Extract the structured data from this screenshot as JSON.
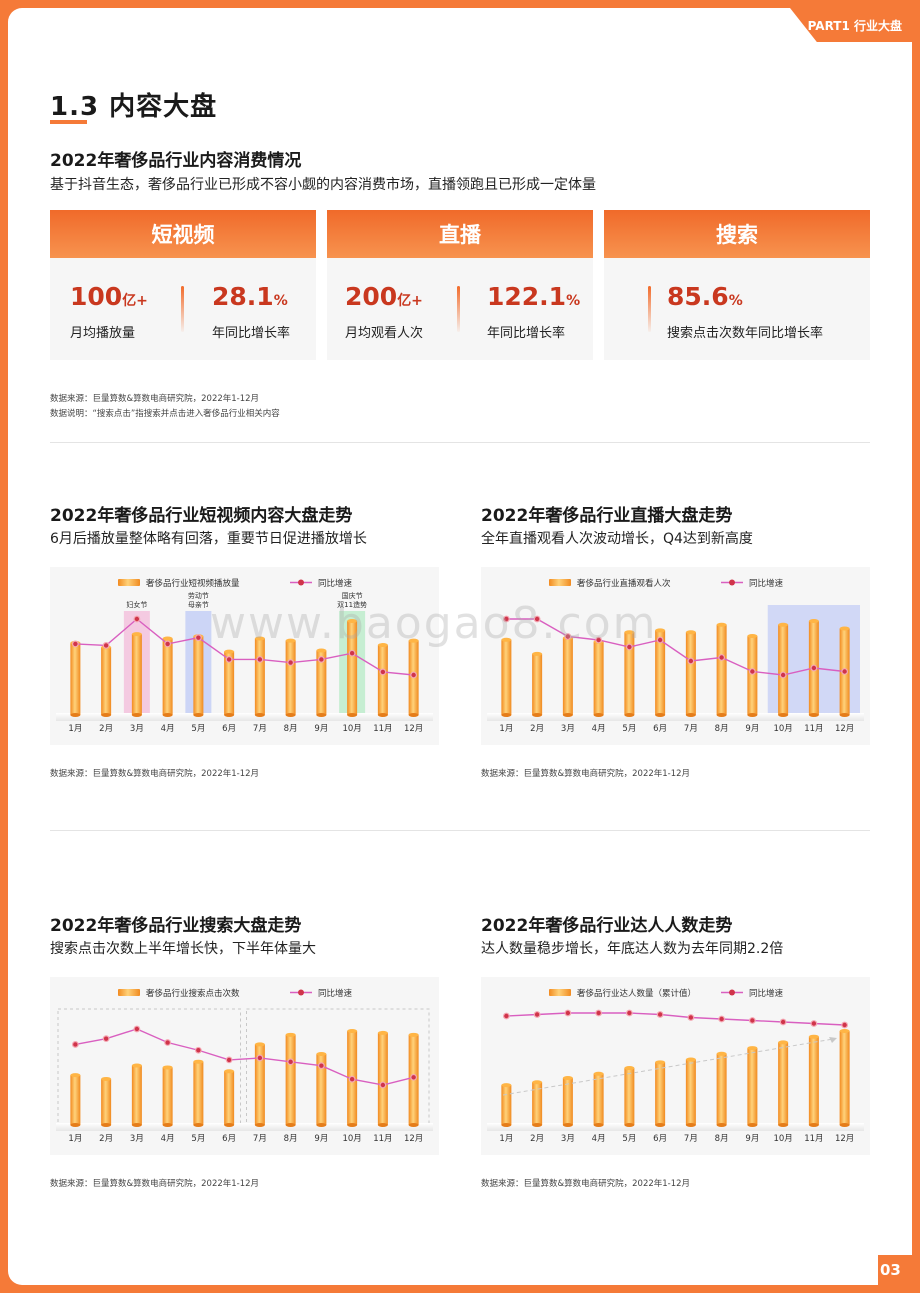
{
  "header": {
    "part_tab": "PART1 行业大盘",
    "page_number": "03"
  },
  "section": {
    "title": "1.3 内容大盘"
  },
  "overview": {
    "title": "2022年奢侈品行业内容消费情况",
    "subtitle": "基于抖音生态，奢侈品行业已形成不容小觑的内容消费市场，直播领跑且已形成一定体量",
    "cards": [
      {
        "title": "短视频",
        "metrics": [
          {
            "value": "100",
            "unit": "亿+",
            "label": "月均播放量"
          },
          {
            "value": "28.1",
            "unit": "%",
            "label": "年同比增长率"
          }
        ]
      },
      {
        "title": "直播",
        "metrics": [
          {
            "value": "200",
            "unit": "亿+",
            "label": "月均观看人次"
          },
          {
            "value": "122.1",
            "unit": "%",
            "label": "年同比增长率"
          }
        ]
      },
      {
        "title": "搜索",
        "metrics": [
          {
            "value": "85.6",
            "unit": "%",
            "label": "搜索点击次数年同比增长率"
          }
        ]
      }
    ],
    "source": "数据来源：巨量算数&算数电商研究院，2022年1-12月",
    "explain": "数据说明：“搜索点击”指搜索并点击进入奢侈品行业相关内容"
  },
  "watermark": "www.baogao8.com",
  "colors": {
    "accent": "#f57a38",
    "bar": "#f7a33c",
    "line": "#d95fc0",
    "dot": "#d0344a"
  },
  "chart_data": [
    {
      "type": "bar",
      "title": "2022年奢侈品行业短视频内容大盘走势",
      "subtitle": "6月后播放量整体略有回落，重要节日促进播放增长",
      "categories": [
        "1月",
        "2月",
        "3月",
        "4月",
        "5月",
        "6月",
        "7月",
        "8月",
        "9月",
        "10月",
        "11月",
        "12月"
      ],
      "series": [
        {
          "name": "奢侈品行业短视频播放量",
          "type": "bar",
          "values": [
            66,
            62,
            74,
            70,
            72,
            58,
            70,
            68,
            59,
            86,
            64,
            68
          ]
        },
        {
          "name": "同比增速",
          "type": "line",
          "values": [
            78,
            77,
            94,
            78,
            82,
            68,
            68,
            66,
            68,
            72,
            60,
            58
          ]
        }
      ],
      "highlights": [
        {
          "index": 2,
          "label": "妇女节",
          "color": "#f3a6cf"
        },
        {
          "index": 4,
          "label": "劳动节\n母亲节",
          "color": "#a9b9f5"
        },
        {
          "index": 9,
          "label": "国庆节\n双11造势",
          "color": "#9fe7b5"
        }
      ],
      "source": "数据来源：巨量算数&算数电商研究院，2022年1-12月"
    },
    {
      "type": "bar",
      "title": "2022年奢侈品行业直播大盘走势",
      "subtitle": "全年直播观看人次波动增长，Q4达到新高度",
      "categories": [
        "1月",
        "2月",
        "3月",
        "4月",
        "5月",
        "6月",
        "7月",
        "8月",
        "9月",
        "10月",
        "11月",
        "12月"
      ],
      "series": [
        {
          "name": "奢侈品行业直播观看人次",
          "type": "bar",
          "values": [
            80,
            65,
            82,
            78,
            88,
            90,
            88,
            96,
            84,
            96,
            100,
            92
          ]
        },
        {
          "name": "同比增速",
          "type": "line",
          "values": [
            82,
            82,
            72,
            70,
            66,
            70,
            58,
            60,
            52,
            50,
            54,
            52
          ]
        }
      ],
      "highlights": [
        {
          "index_start": 9,
          "index_end": 11,
          "label": "",
          "color": "#b9c4f7"
        }
      ],
      "source": "数据来源：巨量算数&算数电商研究院，2022年1-12月"
    },
    {
      "type": "bar",
      "title": "2022年奢侈品行业搜索大盘走势",
      "subtitle": "搜索点击次数上半年增长快，下半年体量大",
      "categories": [
        "1月",
        "2月",
        "3月",
        "4月",
        "5月",
        "6月",
        "7月",
        "8月",
        "9月",
        "10月",
        "11月",
        "12月"
      ],
      "series": [
        {
          "name": "奢侈品行业搜索点击次数",
          "type": "bar",
          "values": [
            52,
            48,
            62,
            60,
            66,
            56,
            84,
            94,
            74,
            98,
            96,
            94
          ]
        },
        {
          "name": "同比增速",
          "type": "line",
          "values": [
            84,
            90,
            100,
            86,
            78,
            68,
            70,
            66,
            62,
            48,
            42,
            50
          ]
        }
      ],
      "source": "数据来源：巨量算数&算数电商研究院，2022年1-12月"
    },
    {
      "type": "bar",
      "title": "2022年奢侈品行业达人人数走势",
      "subtitle": "达人数量稳步增长，年底达人数为去年同期2.2倍",
      "categories": [
        "1月",
        "2月",
        "3月",
        "4月",
        "5月",
        "6月",
        "7月",
        "8月",
        "9月",
        "10月",
        "11月",
        "12月"
      ],
      "series": [
        {
          "name": "奢侈品行业达人数量（累计值）",
          "type": "bar",
          "values": [
            28,
            30,
            33,
            36,
            40,
            44,
            46,
            50,
            54,
            58,
            62,
            66
          ]
        },
        {
          "name": "同比增速",
          "type": "line",
          "values": [
            96,
            97,
            98,
            98,
            98,
            97,
            95,
            94,
            93,
            92,
            91,
            90
          ]
        }
      ],
      "source": "数据来源：巨量算数&算数电商研究院，2022年1-12月"
    }
  ]
}
